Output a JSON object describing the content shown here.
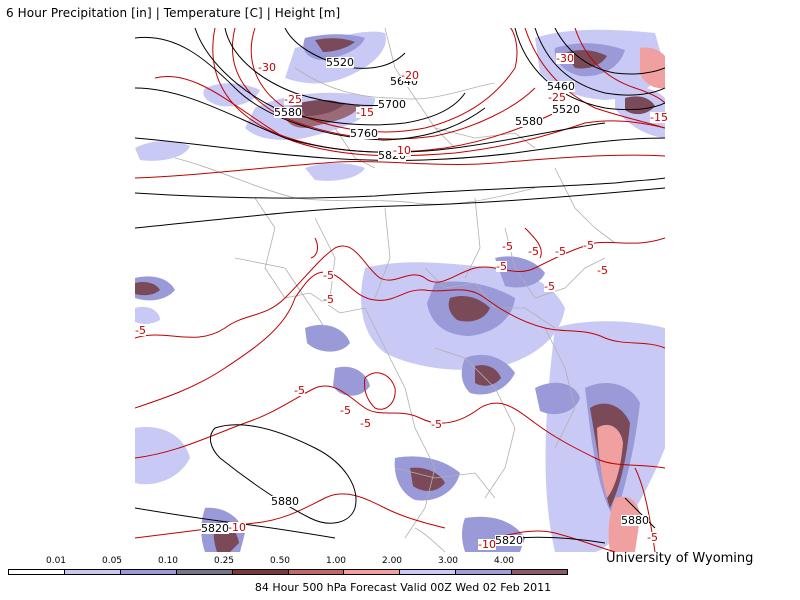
{
  "header": {
    "title": "6 Hour Precipitation [in] | Temperature [C] | Height [m]"
  },
  "credit": "University of Wyoming",
  "legend": {
    "ticks": [
      "0.01",
      "0.05",
      "0.10",
      "0.25",
      "0.50",
      "1.00",
      "2.00",
      "3.00",
      "4.00"
    ],
    "colors": [
      "#ffffff",
      "#c8c8f0",
      "#9a9ad8",
      "#74748c",
      "#7a3a3a",
      "#c06868",
      "#f0a0a0",
      "#c9c9f5",
      "#9e9ed8",
      "#8a5a6a"
    ]
  },
  "footer": "84 Hour 500 hPa Forecast Valid 00Z Wed 02 Feb 2011",
  "map": {
    "colors": {
      "precip_light": "#c9c9f5",
      "precip_mid": "#9696c8",
      "precip_dark": "#7a4a58",
      "precip_heavy": "#f0a0a0",
      "temperature": "#c00000",
      "height": "#000000",
      "borders": "#b0b0b0"
    },
    "height_labels": [
      "5520",
      "5640",
      "5700",
      "5580",
      "5760",
      "5820",
      "5460",
      "5520",
      "5580",
      "5880",
      "5820",
      "5820",
      "5880"
    ],
    "temp_labels": [
      "-30",
      "-25",
      "-20",
      "-15",
      "-25",
      "-30",
      "-15",
      "-10",
      "-5",
      "-5",
      "-5",
      "-5",
      "-5",
      "-5",
      "-5",
      "-5",
      "-5",
      "-5",
      "-5",
      "-5",
      "-5",
      "-5",
      "-10",
      "-10",
      "-5"
    ]
  }
}
